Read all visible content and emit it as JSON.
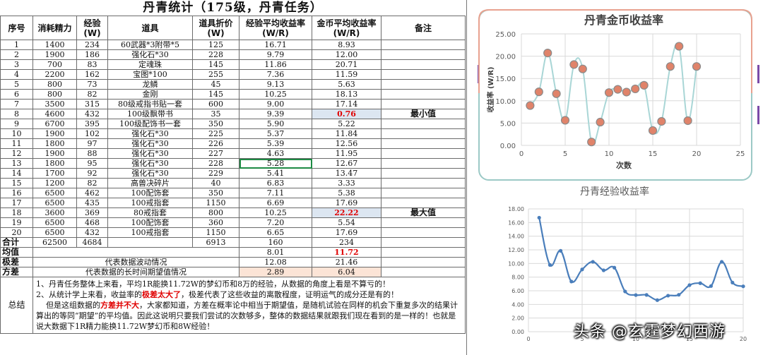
{
  "sheet": {
    "title": "丹青统计（175级，丹青任务）",
    "headers": [
      "序号",
      "消耗精力",
      "经验\n(W)",
      "道具",
      "道具折价\n(W)",
      "经验平均收益率\n(W/R)",
      "金币平均收益率\n(W/R)",
      "备注"
    ],
    "rows": [
      {
        "no": "1",
        "energy": "1400",
        "exp": "234",
        "item": "60武器*3附带*5",
        "price": "125",
        "exp_rate": "16.71",
        "gold_rate": "8.93",
        "note": ""
      },
      {
        "no": "2",
        "energy": "1900",
        "exp": "186",
        "item": "强化石*30",
        "price": "228",
        "exp_rate": "9.79",
        "gold_rate": "12.00",
        "note": ""
      },
      {
        "no": "3",
        "energy": "700",
        "exp": "83",
        "item": "定魂珠",
        "price": "145",
        "exp_rate": "11.86",
        "gold_rate": "20.71",
        "note": ""
      },
      {
        "no": "4",
        "energy": "2200",
        "exp": "162",
        "item": "宝图*100",
        "price": "255",
        "exp_rate": "7.36",
        "gold_rate": "11.59",
        "note": ""
      },
      {
        "no": "5",
        "energy": "800",
        "exp": "73",
        "item": "龙鳞",
        "price": "45",
        "exp_rate": "9.13",
        "gold_rate": "5.63",
        "note": ""
      },
      {
        "no": "6",
        "energy": "800",
        "exp": "82",
        "item": "金刚",
        "price": "145",
        "exp_rate": "10.25",
        "gold_rate": "18.13",
        "note": ""
      },
      {
        "no": "7",
        "energy": "3500",
        "exp": "315",
        "item": "80级戒指书贴一套",
        "price": "600",
        "exp_rate": "9.00",
        "gold_rate": "17.14",
        "note": ""
      },
      {
        "no": "8",
        "energy": "4600",
        "exp": "432",
        "item": "100级飘带书",
        "price": "35",
        "exp_rate": "9.39",
        "gold_rate": "0.76",
        "note": "最小值"
      },
      {
        "no": "9",
        "energy": "6700",
        "exp": "395",
        "item": "100级配饰书一套",
        "price": "350",
        "exp_rate": "5.90",
        "gold_rate": "5.22",
        "note": ""
      },
      {
        "no": "10",
        "energy": "1900",
        "exp": "102",
        "item": "强化石*30",
        "price": "225",
        "exp_rate": "5.37",
        "gold_rate": "11.84",
        "note": ""
      },
      {
        "no": "11",
        "energy": "1800",
        "exp": "97",
        "item": "强化石*30",
        "price": "226",
        "exp_rate": "5.39",
        "gold_rate": "12.56",
        "note": ""
      },
      {
        "no": "12",
        "energy": "1900",
        "exp": "88",
        "item": "强化石*30",
        "price": "227",
        "exp_rate": "4.63",
        "gold_rate": "11.95",
        "note": ""
      },
      {
        "no": "13",
        "energy": "1800",
        "exp": "95",
        "item": "强化石*30",
        "price": "228",
        "exp_rate": "5.28",
        "gold_rate": "12.67",
        "note": ""
      },
      {
        "no": "14",
        "energy": "1700",
        "exp": "92",
        "item": "强化石*30",
        "price": "229",
        "exp_rate": "5.41",
        "gold_rate": "13.47",
        "note": ""
      },
      {
        "no": "15",
        "energy": "1200",
        "exp": "82",
        "item": "高兽决碎片",
        "price": "40",
        "exp_rate": "6.83",
        "gold_rate": "3.33",
        "note": ""
      },
      {
        "no": "16",
        "energy": "6500",
        "exp": "462",
        "item": "100配饰套",
        "price": "350",
        "exp_rate": "7.11",
        "gold_rate": "5.38",
        "note": ""
      },
      {
        "no": "17",
        "energy": "6500",
        "exp": "435",
        "item": "100戒指套",
        "price": "1150",
        "exp_rate": "6.69",
        "gold_rate": "17.69",
        "note": ""
      },
      {
        "no": "18",
        "energy": "3600",
        "exp": "369",
        "item": "80戒指套",
        "price": "800",
        "exp_rate": "10.25",
        "gold_rate": "22.22",
        "note": "最大值"
      },
      {
        "no": "19",
        "energy": "6500",
        "exp": "468",
        "item": "100配饰套",
        "price": "360",
        "exp_rate": "7.20",
        "gold_rate": "5.54",
        "note": ""
      },
      {
        "no": "20",
        "energy": "6500",
        "exp": "432",
        "item": "100戒指套",
        "price": "1150",
        "exp_rate": "6.65",
        "gold_rate": "17.69",
        "note": ""
      }
    ],
    "total": {
      "label": "合计",
      "energy": "62500",
      "exp": "4684",
      "price": "6913",
      "exp_rate": "160",
      "gold_rate": "234"
    },
    "mean": {
      "label": "均值",
      "exp_rate": "8.01",
      "gold_rate": "11.72"
    },
    "range": {
      "label": "极差",
      "desc": "代表数据波动情况",
      "exp_rate": "12.08",
      "gold_rate": "21.46"
    },
    "variance": {
      "label": "方差",
      "desc": "代表数据的长时间期望值情况",
      "exp_rate": "2.89",
      "gold_rate": "6.04"
    },
    "summary": {
      "label": "总结",
      "line1": "1、丹青任务整体上来看，平均1R能换11.72W的梦幻币和8万的经验，从数据的角度上看是不算亏的！",
      "line2a": "2、从统计学上来看，收益率的",
      "line2b": "极差太大了",
      "line2c": "，极差代表了这些收益的离散程度，证明运气的成分还是有的！",
      "line3a": "但是这组数据的",
      "line3b": "方差并不大",
      "line3c": "，大家都知道，方差在概率论中相当于期望值，是随机试验在同样的机会下重复多次的结果计算出的等同“期望”的平均值。因此这说明只要我们尝试的次数够多，整体的数据结果就跟我们现在看到的是一样的！也就是说大数据下1R精力能换11.72W梦幻币和8W经验！"
    }
  },
  "chart_data": [
    {
      "type": "scatter",
      "title": "丹青金币收益率",
      "xlabel": "次数",
      "ylabel": "收益率 (W/R)",
      "xlim": [
        0,
        25
      ],
      "ylim": [
        0,
        25
      ],
      "xticks": [
        0,
        5,
        10,
        15,
        20,
        25
      ],
      "yticks": [
        0,
        5,
        10,
        15,
        20,
        25
      ],
      "ytick_labels": [
        "0.00",
        "5.00",
        "10.00",
        "15.00",
        "20.00",
        "25.00"
      ],
      "x": [
        1,
        2,
        3,
        4,
        5,
        6,
        7,
        8,
        9,
        10,
        11,
        12,
        13,
        14,
        15,
        16,
        17,
        18,
        19,
        20
      ],
      "y": [
        8.93,
        12.0,
        20.71,
        11.59,
        5.63,
        18.13,
        17.14,
        0.76,
        5.22,
        11.84,
        12.56,
        11.95,
        12.67,
        13.47,
        3.33,
        5.38,
        17.69,
        22.22,
        5.54,
        17.69
      ],
      "grid": true,
      "smooth_line": true,
      "colors": {
        "line": "#a9d6d6",
        "marker": "#e0836a",
        "marker_edge": "#8a8a8a",
        "title": "#404040",
        "frame_top": "#e8a18f",
        "frame_bottom": "#9cc9c6"
      }
    },
    {
      "type": "line",
      "title": "丹青经验收益率",
      "xlim": [
        0,
        20
      ],
      "ylim": [
        0,
        18
      ],
      "xticks": [
        0,
        5,
        10,
        15,
        20
      ],
      "yticks": [
        0,
        2,
        4,
        6,
        8,
        10,
        12,
        14,
        16,
        18
      ],
      "ytick_labels": [
        "0.00",
        "2.00",
        "4.00",
        "6.00",
        "8.00",
        "10.00",
        "12.00",
        "14.00",
        "16.00",
        "18.00"
      ],
      "x": [
        1,
        2,
        3,
        4,
        5,
        6,
        7,
        8,
        9,
        10,
        11,
        12,
        13,
        14,
        15,
        16,
        17,
        18,
        19,
        20
      ],
      "y": [
        16.71,
        9.79,
        11.86,
        7.36,
        9.13,
        10.25,
        9.0,
        9.39,
        5.9,
        5.37,
        5.39,
        4.63,
        5.28,
        5.41,
        6.83,
        7.11,
        6.69,
        10.25,
        7.2,
        6.65
      ],
      "grid": true,
      "colors": {
        "line": "#4a7ebb",
        "title": "#595959"
      }
    }
  ],
  "watermark": "头条 @玄霆梦幻西游"
}
